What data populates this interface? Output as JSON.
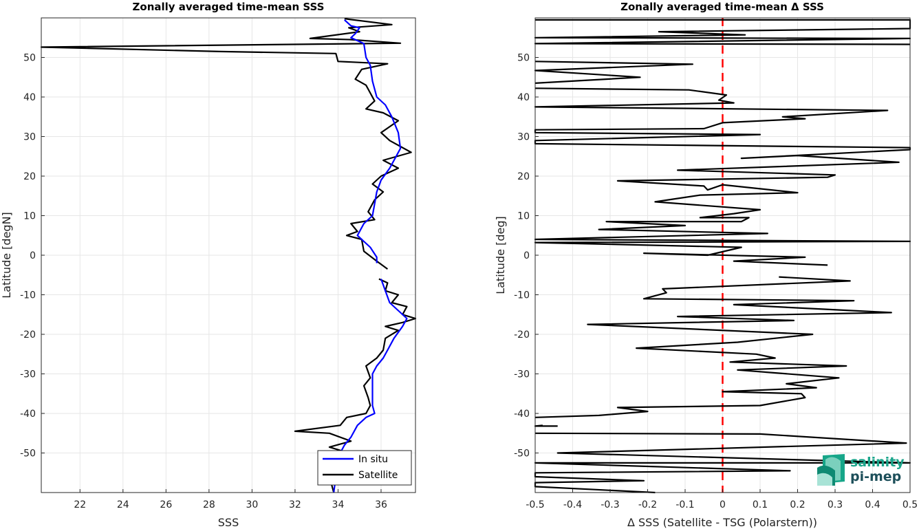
{
  "chart_data": [
    {
      "type": "line",
      "title": "Zonally averaged time-mean SSS",
      "xlabel": "SSS",
      "ylabel": "Latitude [degN]",
      "xlim": [
        20.2,
        37.6
      ],
      "ylim": [
        -60,
        60
      ],
      "xticks": [
        22,
        24,
        26,
        28,
        30,
        32,
        34,
        36
      ],
      "yticks": [
        -50,
        -40,
        -30,
        -20,
        -10,
        0,
        10,
        20,
        30,
        40,
        50
      ],
      "grid": true,
      "legend": "bottom-right",
      "series": [
        {
          "name": "In situ",
          "color": "#0000ff",
          "points": [
            [
              34.3,
              59.5
            ],
            [
              34.6,
              58
            ],
            [
              35.0,
              57.5
            ],
            [
              34.8,
              56
            ],
            [
              34.6,
              55
            ],
            [
              35.2,
              53.5
            ],
            [
              35.3,
              50
            ],
            [
              35.5,
              48
            ],
            [
              35.6,
              44
            ],
            [
              35.8,
              40
            ],
            [
              36.2,
              38
            ],
            [
              36.5,
              35
            ],
            [
              36.8,
              31
            ],
            [
              36.9,
              27
            ],
            [
              36.7,
              25
            ],
            [
              36.4,
              22
            ],
            [
              36.0,
              19
            ],
            [
              35.8,
              16
            ],
            [
              35.7,
              13
            ],
            [
              35.6,
              10
            ],
            [
              35.2,
              8
            ],
            [
              34.9,
              5
            ],
            [
              35.5,
              2
            ],
            [
              35.8,
              -0.5
            ],
            [
              35.8,
              -2
            ]
          ],
          "segments2": [
            [
              [
                36.0,
                -6
              ],
              [
                36.2,
                -9
              ],
              [
                36.4,
                -12
              ],
              [
                36.8,
                -14
              ],
              [
                37.2,
                -16
              ],
              [
                37.0,
                -18
              ],
              [
                36.6,
                -21
              ],
              [
                36.3,
                -24
              ],
              [
                36.1,
                -26
              ],
              [
                35.8,
                -28
              ],
              [
                35.6,
                -30
              ],
              [
                35.6,
                -33
              ],
              [
                35.6,
                -36
              ],
              [
                35.6,
                -38
              ],
              [
                35.7,
                -40
              ],
              [
                35.3,
                -41
              ],
              [
                34.9,
                -43
              ],
              [
                34.6,
                -46
              ],
              [
                34.3,
                -48
              ],
              [
                34.1,
                -50
              ],
              [
                34.0,
                -53
              ],
              [
                33.9,
                -56
              ],
              [
                33.8,
                -60
              ]
            ]
          ]
        },
        {
          "name": "Satellite",
          "color": "#000000",
          "points": [
            [
              34.3,
              59.8
            ],
            [
              36.5,
              58.3
            ],
            [
              34.5,
              57.5
            ],
            [
              35.0,
              56.5
            ],
            [
              32.7,
              54.8
            ],
            [
              34.6,
              54.5
            ],
            [
              36.9,
              53.6
            ],
            [
              20.2,
              52.6
            ],
            [
              28.5,
              51.5
            ],
            [
              33.9,
              51
            ],
            [
              34.0,
              49
            ],
            [
              36.3,
              48.4
            ],
            [
              35.1,
              47
            ],
            [
              34.8,
              44.5
            ],
            [
              35.3,
              43
            ],
            [
              35.7,
              39
            ],
            [
              35.3,
              37
            ],
            [
              36.1,
              36
            ],
            [
              36.8,
              34
            ],
            [
              36.0,
              31
            ],
            [
              36.4,
              29
            ],
            [
              37.4,
              26
            ],
            [
              36.1,
              24
            ],
            [
              36.8,
              22
            ],
            [
              36.0,
              20
            ],
            [
              35.6,
              18
            ],
            [
              36.1,
              16
            ],
            [
              35.7,
              14
            ],
            [
              35.4,
              11
            ],
            [
              35.7,
              9
            ],
            [
              34.6,
              8
            ],
            [
              34.9,
              6
            ],
            [
              34.4,
              5
            ],
            [
              35.1,
              4
            ],
            [
              35.2,
              1
            ],
            [
              35.8,
              -1.5
            ],
            [
              36.3,
              -3.5
            ]
          ],
          "segments2": [
            [
              [
                35.9,
                -6
              ],
              [
                36.3,
                -7
              ],
              [
                36.2,
                -9
              ],
              [
                36.8,
                -10
              ],
              [
                36.5,
                -12
              ],
              [
                37.2,
                -13
              ],
              [
                37.0,
                -15
              ],
              [
                37.6,
                -16
              ],
              [
                37.0,
                -17
              ],
              [
                36.2,
                -18
              ],
              [
                36.8,
                -19
              ],
              [
                36.2,
                -21
              ],
              [
                36.1,
                -24
              ],
              [
                35.8,
                -26
              ],
              [
                35.3,
                -28
              ],
              [
                35.5,
                -31
              ],
              [
                35.2,
                -33
              ],
              [
                35.4,
                -36
              ],
              [
                35.5,
                -38
              ],
              [
                35.3,
                -40
              ],
              [
                34.4,
                -41
              ],
              [
                34.1,
                -43
              ],
              [
                32.0,
                -44.5
              ],
              [
                33.6,
                -45
              ],
              [
                34.6,
                -47
              ],
              [
                33.6,
                -48.5
              ],
              [
                34.5,
                -50
              ],
              [
                33.8,
                -52
              ],
              [
                33.6,
                -54
              ],
              [
                33.5,
                -56
              ],
              [
                33.7,
                -58
              ],
              [
                33.8,
                -60
              ]
            ]
          ]
        }
      ]
    },
    {
      "type": "line",
      "title": "Zonally averaged time-mean Δ SSS",
      "xlabel": "Δ SSS (Satellite - TSG (Polarstern))",
      "ylabel": "Latitude [deg]",
      "xlim": [
        -0.5,
        0.5
      ],
      "ylim": [
        -60,
        60
      ],
      "xticks": [
        -0.5,
        -0.4,
        -0.3,
        -0.2,
        -0.1,
        0,
        0.1,
        0.2,
        0.3,
        0.4,
        0.5
      ],
      "yticks": [
        -50,
        -40,
        -30,
        -20,
        -10,
        0,
        10,
        20,
        30,
        40,
        50
      ],
      "grid": true,
      "reference_line": {
        "x": 0,
        "color": "#ff0000",
        "style": "dashed"
      },
      "series": [
        {
          "name": "",
          "color": "#000000",
          "points": [
            [
              -0.5,
              59.5
            ],
            [
              0.5,
              59.5
            ],
            [
              0.5,
              57.3
            ],
            [
              -0.17,
              56.5
            ],
            [
              0.06,
              55.7
            ],
            [
              -0.5,
              55
            ],
            [
              0.5,
              54.8
            ],
            [
              -0.5,
              53.5
            ],
            [
              0.5,
              53.3
            ]
          ],
          "segments2": [
            [
              [
                -0.5,
                49
              ],
              [
                -0.08,
                48.3
              ],
              [
                -0.5,
                46.7
              ],
              [
                -0.22,
                45
              ],
              [
                -0.5,
                43.5
              ]
            ],
            [
              [
                -0.5,
                42.2
              ],
              [
                -0.09,
                41.8
              ],
              [
                0.01,
                40.5
              ],
              [
                -0.01,
                39.2
              ],
              [
                0.03,
                38.5
              ],
              [
                -0.5,
                37.5
              ],
              [
                0.44,
                36.6
              ],
              [
                0.16,
                35
              ],
              [
                0.22,
                34.5
              ],
              [
                0.0,
                33.5
              ],
              [
                -0.05,
                32
              ],
              [
                -0.5,
                31.7
              ],
              [
                -0.5,
                31
              ],
              [
                0.1,
                30.5
              ],
              [
                -0.5,
                29
              ],
              [
                -0.5,
                28.2
              ],
              [
                0.5,
                27.2
              ],
              [
                0.5,
                26.7
              ],
              [
                0.05,
                24.5
              ],
              [
                0.2,
                25.2
              ],
              [
                0.47,
                23.5
              ],
              [
                -0.12,
                21.5
              ],
              [
                0.3,
                20.3
              ],
              [
                0.28,
                19.7
              ],
              [
                -0.28,
                18.8
              ],
              [
                -0.05,
                17.5
              ],
              [
                -0.04,
                16.5
              ],
              [
                0.0,
                17.8
              ],
              [
                0.2,
                15.8
              ],
              [
                -0.06,
                15.2
              ],
              [
                -0.18,
                13.5
              ],
              [
                0.1,
                11.5
              ],
              [
                0.03,
                10.5
              ],
              [
                -0.06,
                9.5
              ],
              [
                0.07,
                9.5
              ],
              [
                0.05,
                8.5
              ],
              [
                -0.31,
                8.5
              ],
              [
                -0.1,
                7.5
              ],
              [
                -0.33,
                6.5
              ],
              [
                0.12,
                5.5
              ],
              [
                -0.5,
                4
              ],
              [
                0.5,
                3.5
              ],
              [
                -0.5,
                3.2
              ],
              [
                0.05,
                2
              ],
              [
                -0.04,
                0
              ],
              [
                -0.21,
                0.5
              ],
              [
                0.22,
                -0.5
              ],
              [
                0.03,
                -1.5
              ],
              [
                0.28,
                -2.5
              ]
            ],
            [
              [
                0.15,
                -5.5
              ],
              [
                0.34,
                -6.5
              ],
              [
                -0.16,
                -8.5
              ],
              [
                -0.15,
                -9.5
              ],
              [
                -0.21,
                -11
              ],
              [
                0.35,
                -11.5
              ],
              [
                0.03,
                -12.5
              ],
              [
                0.45,
                -14.5
              ],
              [
                -0.12,
                -15.5
              ],
              [
                0.19,
                -16.5
              ],
              [
                -0.36,
                -17.5
              ],
              [
                0.24,
                -20
              ],
              [
                0.04,
                -22
              ],
              [
                -0.23,
                -23.5
              ],
              [
                0.09,
                -25
              ],
              [
                0.14,
                -26
              ],
              [
                0.02,
                -27
              ],
              [
                0.33,
                -28
              ],
              [
                0.04,
                -29
              ],
              [
                0.31,
                -31
              ],
              [
                0.17,
                -32.5
              ],
              [
                0.25,
                -33.5
              ],
              [
                0.0,
                -34.5
              ],
              [
                0.21,
                -35
              ],
              [
                0.22,
                -36
              ],
              [
                0.1,
                -38
              ],
              [
                -0.28,
                -38.5
              ],
              [
                -0.2,
                -39.5
              ],
              [
                -0.33,
                -40.5
              ],
              [
                -0.5,
                -41
              ]
            ],
            [
              [
                -0.48,
                -43
              ],
              [
                -0.5,
                -43.2
              ],
              [
                -0.44,
                -43.2
              ]
            ],
            [
              [
                -0.5,
                -45
              ],
              [
                0.1,
                -45.2
              ],
              [
                0.49,
                -47.5
              ],
              [
                -0.44,
                -50
              ],
              [
                0.5,
                -52.5
              ],
              [
                -0.5,
                -52.5
              ],
              [
                0.18,
                -54.5
              ],
              [
                -0.5,
                -55
              ],
              [
                -0.5,
                -56
              ],
              [
                -0.21,
                -57
              ],
              [
                -0.5,
                -57.5
              ],
              [
                -0.5,
                -58.5
              ],
              [
                -0.18,
                -60
              ]
            ]
          ]
        }
      ]
    }
  ],
  "legend": {
    "items": [
      {
        "label": "In situ",
        "color": "#0000ff"
      },
      {
        "label": "Satellite",
        "color": "#000000"
      }
    ]
  },
  "logo": {
    "line1": "salinity",
    "line2": "pi-mep"
  }
}
